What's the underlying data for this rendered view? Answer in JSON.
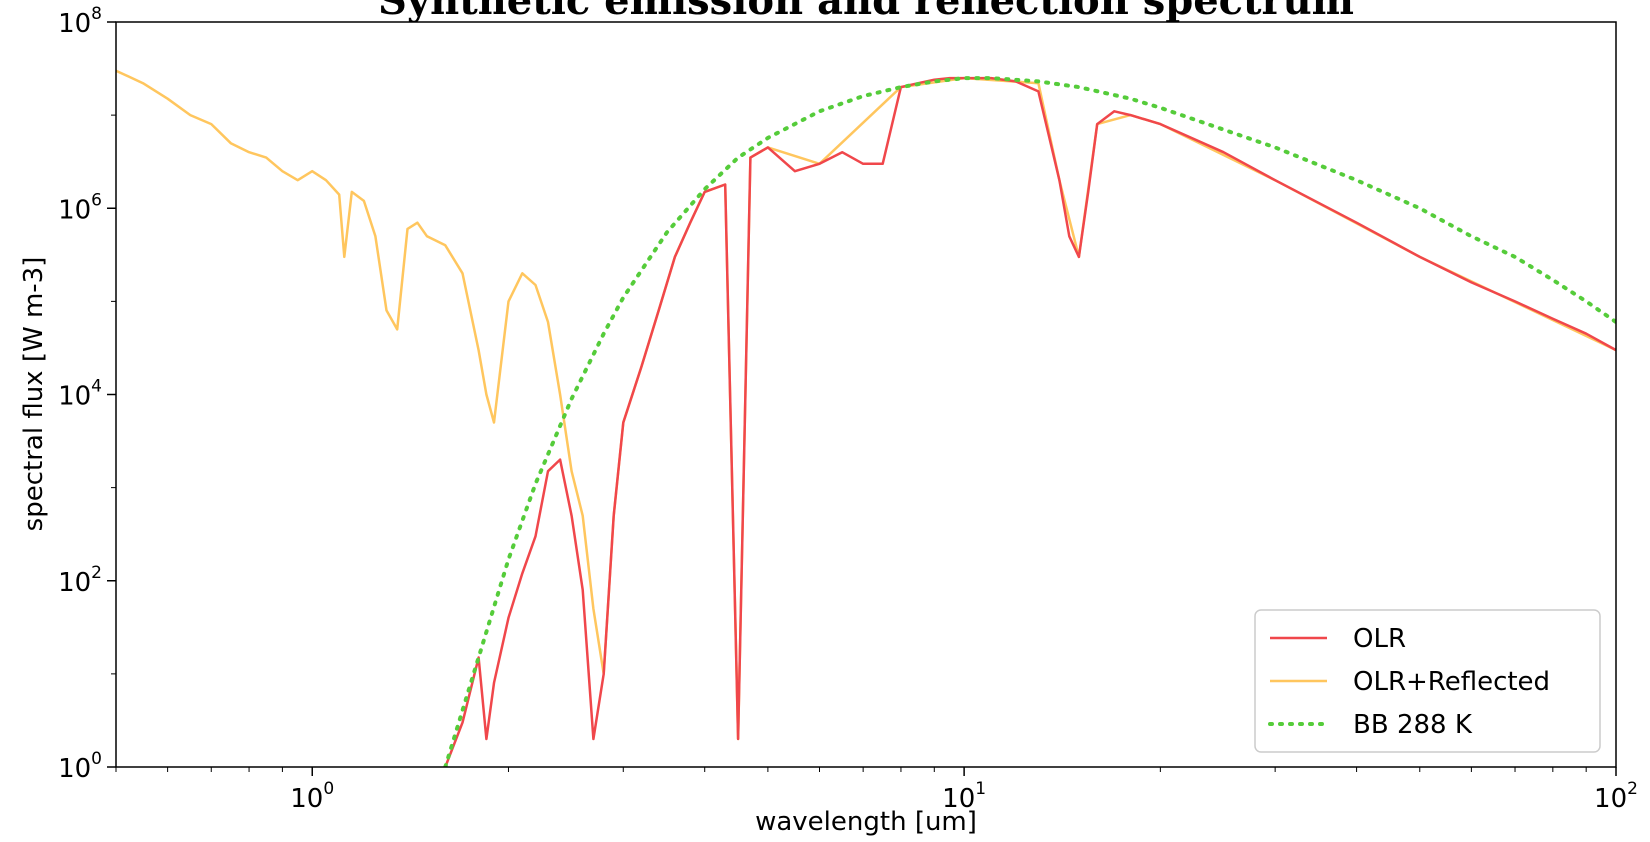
{
  "chart_data": {
    "type": "line",
    "title": "Synthetic emission and reflection spectrum",
    "xlabel": "wavelength [um]",
    "ylabel": "spectral flux [W m-3]",
    "xscale": "log",
    "yscale": "log",
    "xlim": [
      0.5,
      100
    ],
    "ylim": [
      1,
      100000000
    ],
    "x_ticks": [
      {
        "value": 1,
        "base": "10",
        "exp": "0"
      },
      {
        "value": 10,
        "base": "10",
        "exp": "1"
      },
      {
        "value": 100,
        "base": "10",
        "exp": "2"
      }
    ],
    "y_ticks": [
      {
        "value": 1,
        "base": "10",
        "exp": "0"
      },
      {
        "value": 100,
        "base": "10",
        "exp": "2"
      },
      {
        "value": 10000,
        "base": "10",
        "exp": "4"
      },
      {
        "value": 1000000,
        "base": "10",
        "exp": "6"
      },
      {
        "value": 100000000,
        "base": "10",
        "exp": "8"
      }
    ],
    "grid": false,
    "legend_position": "lower right",
    "series": [
      {
        "name": "OLR",
        "color": "#f0474b",
        "style": "solid",
        "x": [
          1.6,
          1.7,
          1.8,
          1.85,
          1.9,
          2.0,
          2.1,
          2.2,
          2.3,
          2.4,
          2.5,
          2.6,
          2.7,
          2.8,
          2.9,
          3.0,
          3.2,
          3.4,
          3.6,
          3.8,
          4.0,
          4.3,
          4.5,
          4.7,
          5.0,
          5.5,
          6.0,
          6.5,
          7.0,
          7.5,
          8.0,
          8.5,
          9.0,
          9.5,
          10,
          11,
          12,
          13,
          14,
          14.5,
          15,
          15.5,
          16,
          17,
          18,
          20,
          25,
          30,
          40,
          50,
          60,
          70,
          80,
          90,
          100
        ],
        "y": [
          1,
          3,
          15,
          2,
          8,
          40,
          120,
          300,
          1500,
          2000,
          500,
          80,
          2,
          10,
          500,
          5000,
          20000,
          80000,
          300000,
          700000,
          1500000,
          1800000,
          2,
          3500000,
          4500000,
          2500000,
          3000000,
          4000000,
          3000000,
          3000000,
          20000000,
          22000000,
          24000000,
          25000000,
          25000000,
          25000000,
          23000000,
          18000000,
          2000000,
          500000,
          300000,
          1500000,
          8000000,
          11000000,
          10000000,
          8000000,
          4000000,
          2000000,
          700000,
          300000,
          160000,
          100000,
          65000,
          45000,
          30000
        ]
      },
      {
        "name": "OLR+Reflected",
        "color": "#ffc65e",
        "style": "solid",
        "x": [
          0.5,
          0.55,
          0.6,
          0.65,
          0.7,
          0.75,
          0.8,
          0.85,
          0.9,
          0.95,
          1.0,
          1.05,
          1.1,
          1.12,
          1.15,
          1.2,
          1.25,
          1.3,
          1.35,
          1.4,
          1.45,
          1.5,
          1.6,
          1.7,
          1.8,
          1.85,
          1.9,
          2.0,
          2.1,
          2.2,
          2.3,
          2.4,
          2.5,
          2.6,
          2.7,
          2.8,
          2.9,
          3.0,
          3.2,
          3.4,
          3.6,
          3.8,
          4.0,
          4.3,
          4.5,
          4.7,
          5.0,
          6.0,
          8.0,
          10,
          13,
          14,
          15,
          16,
          18,
          20,
          30,
          50,
          100
        ],
        "y": [
          30000000,
          22000000,
          15000000,
          10000000,
          8000000,
          5000000,
          4000000,
          3500000,
          2500000,
          2000000,
          2500000,
          2000000,
          1400000,
          300000,
          1500000,
          1200000,
          500000,
          80000,
          50000,
          600000,
          700000,
          500000,
          400000,
          200000,
          30000,
          10000,
          5000,
          100000,
          200000,
          150000,
          60000,
          10000,
          1500,
          500,
          50,
          10,
          500,
          5000,
          20000,
          80000,
          300000,
          700000,
          1500000,
          1800000,
          2,
          3500000,
          4500000,
          3000000,
          20000000,
          25000000,
          22000000,
          2000000,
          300000,
          8000000,
          10000000,
          8000000,
          2000000,
          300000,
          30000
        ]
      },
      {
        "name": "BB 288 K",
        "color": "#55cc3a",
        "style": "dotted",
        "x": [
          1.6,
          1.8,
          2.0,
          2.2,
          2.5,
          2.8,
          3.0,
          3.5,
          4.0,
          4.5,
          5.0,
          6.0,
          7.0,
          8.0,
          9.0,
          10,
          11,
          13,
          15,
          18,
          20,
          25,
          30,
          40,
          50,
          60,
          70,
          80,
          90,
          100
        ],
        "y": [
          1,
          15,
          170,
          1100,
          9000,
          45000,
          110000,
          550000,
          1600000,
          3500000,
          5700000,
          11000000,
          16000000,
          20000000,
          23000000,
          25000000,
          25000000,
          23000000,
          20000000,
          15000000,
          12000000,
          7000000,
          4500000,
          2000000,
          1000000,
          500000,
          300000,
          170000,
          100000,
          60000
        ]
      }
    ]
  }
}
